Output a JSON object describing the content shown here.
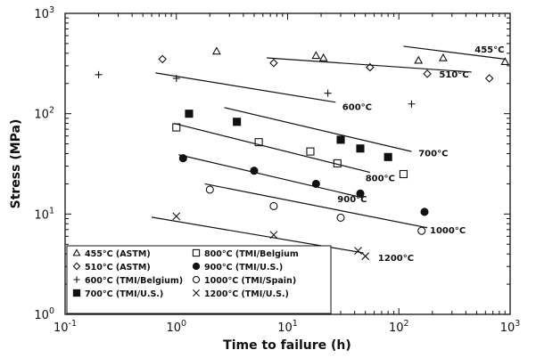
{
  "chart_data": {
    "type": "scatter",
    "xlabel": "Time to failure (h)",
    "ylabel": "Stress (MPa)",
    "xscale": "log",
    "yscale": "log",
    "xlim": [
      0.1,
      1000
    ],
    "ylim": [
      1,
      1000
    ],
    "grid": false,
    "legend_position": "bottom-left",
    "x_ticks": [
      {
        "value": 0.1,
        "base": "10",
        "exp": "-1"
      },
      {
        "value": 1,
        "base": "10",
        "exp": "0"
      },
      {
        "value": 10,
        "base": "10",
        "exp": "1"
      },
      {
        "value": 100,
        "base": "10",
        "exp": "2"
      },
      {
        "value": 1000,
        "base": "10",
        "exp": "3"
      }
    ],
    "y_ticks": [
      {
        "value": 1,
        "base": "10",
        "exp": "0"
      },
      {
        "value": 10,
        "base": "10",
        "exp": "1"
      },
      {
        "value": 100,
        "base": "10",
        "exp": "2"
      },
      {
        "value": 1000,
        "base": "10",
        "exp": "3"
      }
    ],
    "series": [
      {
        "name": "455°C (ASTM)",
        "marker": "triangle-open",
        "points": [
          [
            2.3,
            420
          ],
          [
            18,
            380
          ],
          [
            21,
            360
          ],
          [
            150,
            340
          ],
          [
            250,
            360
          ],
          [
            900,
            330
          ]
        ]
      },
      {
        "name": "510°C (ASTM)",
        "marker": "diamond-open",
        "points": [
          [
            0.75,
            350
          ],
          [
            7.5,
            320
          ],
          [
            55,
            290
          ],
          [
            180,
            250
          ],
          [
            650,
            225
          ]
        ]
      },
      {
        "name": "600°C (TMI/Belgium)",
        "marker": "plus",
        "points": [
          [
            0.2,
            245
          ],
          [
            1,
            225
          ],
          [
            23,
            160
          ],
          [
            130,
            125
          ]
        ]
      },
      {
        "name": "700°C (TMI/U.S.)",
        "marker": "square-filled",
        "points": [
          [
            1.3,
            100
          ],
          [
            3.5,
            83
          ],
          [
            30,
            55
          ],
          [
            45,
            45
          ],
          [
            80,
            37
          ]
        ]
      },
      {
        "name": "800°C (TMI/Belgium",
        "marker": "square-open",
        "points": [
          [
            1,
            73
          ],
          [
            5.5,
            52
          ],
          [
            16,
            42
          ],
          [
            28,
            32
          ],
          [
            110,
            25
          ]
        ]
      },
      {
        "name": "900°C (TMI/U.S.)",
        "marker": "circle-filled",
        "points": [
          [
            1.15,
            36
          ],
          [
            5,
            27
          ],
          [
            18,
            20
          ],
          [
            45,
            16
          ],
          [
            170,
            10.5
          ]
        ]
      },
      {
        "name": "1000°C (TMI/Spain)",
        "marker": "circle-open",
        "points": [
          [
            2,
            17.5
          ],
          [
            7.5,
            12
          ],
          [
            30,
            9.2
          ],
          [
            160,
            6.8
          ]
        ]
      },
      {
        "name": "1200°C (TMI/U.S.)",
        "marker": "x",
        "points": [
          [
            1,
            9.5
          ],
          [
            7.5,
            6.2
          ],
          [
            43,
            4.3
          ],
          [
            50,
            3.8
          ]
        ]
      }
    ],
    "fit_lines": [
      {
        "label": "455°C",
        "from": [
          110,
          470
        ],
        "to": [
          900,
          350
        ],
        "label_at": [
          480,
          440
        ]
      },
      {
        "label": "510°C",
        "from": [
          6.5,
          360
        ],
        "to": [
          450,
          260
        ],
        "label_at": [
          230,
          250
        ]
      },
      {
        "label": "600°C",
        "from": [
          0.65,
          255
        ],
        "to": [
          27,
          130
        ],
        "label_at": [
          31,
          118
        ]
      },
      {
        "label": "700°C",
        "from": [
          2.7,
          115
        ],
        "to": [
          130,
          42
        ],
        "label_at": [
          150,
          41
        ]
      },
      {
        "label": "800°C",
        "from": [
          0.95,
          80
        ],
        "to": [
          55,
          26
        ],
        "label_at": [
          50,
          23
        ]
      },
      {
        "label": "900°C",
        "from": [
          1.05,
          39
        ],
        "to": [
          48,
          14.5
        ],
        "label_at": [
          28,
          14.2
        ]
      },
      {
        "label": "1000°C",
        "from": [
          1.8,
          20
        ],
        "to": [
          180,
          7.3
        ],
        "label_at": [
          190,
          7
        ]
      },
      {
        "label": "1200°C",
        "from": [
          0.6,
          9.3
        ],
        "to": [
          48,
          4.1
        ],
        "label_at": [
          65,
          3.7
        ]
      }
    ]
  }
}
